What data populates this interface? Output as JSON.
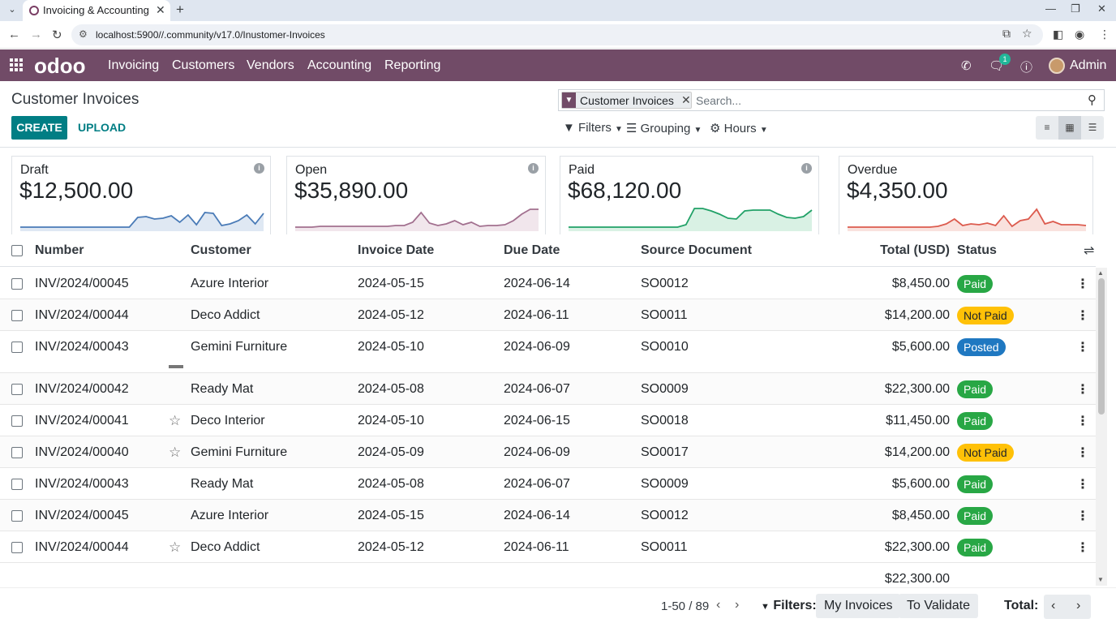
{
  "browser": {
    "tab_title": "Invoicing & Accounting",
    "url": "localhost:5900//.community/v17.0/Inustomer-Invoices"
  },
  "topnav": {
    "logo": "odoo",
    "menu": [
      "Invoicing",
      "Customers",
      "Vendors",
      "Accounting",
      "Reporting"
    ],
    "chat_badge": "1",
    "user": "Admin"
  },
  "control": {
    "title": "Customer Invoices",
    "create": "CREATE",
    "upload": "UPLOAD",
    "facet": "Customer Invoices",
    "search_placeholder": "Search...",
    "filters": "Filters",
    "grouping": "Grouping",
    "hours": "Hours"
  },
  "kpis": [
    {
      "label": "Draft",
      "value": "$12,500.00",
      "color": "#4a7bb7",
      "fill": "#dfe8f3",
      "trend": [
        2,
        2,
        2,
        2,
        2,
        2,
        2,
        2,
        2,
        2,
        2,
        2,
        2,
        2,
        14,
        15,
        12,
        13,
        16,
        8,
        17,
        5,
        20,
        19,
        4,
        6,
        10,
        17,
        6,
        19
      ]
    },
    {
      "label": "Open",
      "value": "$35,890.00",
      "color": "#a2708f",
      "fill": "#f1e6ec",
      "trend": [
        2,
        2,
        2,
        3,
        3,
        3,
        3,
        3,
        3,
        3,
        3,
        3,
        4,
        4,
        8,
        20,
        7,
        4,
        6,
        10,
        5,
        8,
        3,
        4,
        4,
        5,
        10,
        18,
        24,
        24
      ]
    },
    {
      "label": "Paid",
      "value": "$68,120.00",
      "color": "#21a167",
      "fill": "#d9f1e4",
      "trend": [
        2,
        2,
        2,
        2,
        2,
        2,
        2,
        2,
        2,
        2,
        2,
        2,
        2,
        2,
        5,
        25,
        25,
        22,
        18,
        13,
        12,
        22,
        23,
        23,
        23,
        18,
        14,
        13,
        15,
        23
      ]
    },
    {
      "label": "Overdue",
      "value": "$4,350.00",
      "color": "#dc5b4e",
      "fill": "#f9e2de",
      "trend": [
        2,
        2,
        2,
        2,
        2,
        2,
        2,
        2,
        2,
        2,
        2,
        3,
        6,
        12,
        4,
        6,
        5,
        7,
        4,
        16,
        3,
        10,
        12,
        24,
        6,
        9,
        5,
        5,
        5,
        4
      ]
    }
  ],
  "table": {
    "headers": [
      "Number",
      "Customer",
      "Invoice Date",
      "Due Date",
      "Source Document",
      "Total (USD)",
      "Status"
    ],
    "rows": [
      {
        "number": "INV/2024/00045",
        "customer": "Azure Interior",
        "invoice_date": "2024-05-15",
        "due_date": "2024-06-14",
        "source": "SO0012",
        "total": "$8,450.00",
        "status": "Paid",
        "status_kind": "paid",
        "star": false
      },
      {
        "number": "INV/2024/00044",
        "customer": "Deco Addict",
        "invoice_date": "2024-05-12",
        "due_date": "2024-06-11",
        "source": "SO0011",
        "total": "$14,200.00",
        "status": "Not Paid",
        "status_kind": "notpaid",
        "star": false
      },
      {
        "number": "INV/2024/00043",
        "customer": "Gemini Furniture",
        "invoice_date": "2024-05-10",
        "due_date": "2024-06-09",
        "source": "SO0010",
        "total": "$5,600.00",
        "status": "Posted",
        "status_kind": "posted",
        "star": false
      },
      {
        "number": "INV/2024/00042",
        "customer": "Ready Mat",
        "invoice_date": "2024-05-08",
        "due_date": "2024-06-07",
        "source": "SO0009",
        "total": "$22,300.00",
        "status": "Paid",
        "status_kind": "paid",
        "star": false
      },
      {
        "number": "INV/2024/00041",
        "customer": "Deco Interior",
        "invoice_date": "2024-05-10",
        "due_date": "2024-06-15",
        "source": "SO0018",
        "total": "$11,450.00",
        "status": "Paid",
        "status_kind": "paid",
        "star": true
      },
      {
        "number": "INV/2024/00040",
        "customer": "Gemini Furniture",
        "invoice_date": "2024-05-09",
        "due_date": "2024-06-09",
        "source": "SO0017",
        "total": "$14,200.00",
        "status": "Not Paid",
        "status_kind": "notpaid",
        "star": true
      },
      {
        "number": "INV/2024/00043",
        "customer": "Ready Mat",
        "invoice_date": "2024-05-08",
        "due_date": "2024-06-07",
        "source": "SO0009",
        "total": "$5,600.00",
        "status": "Paid",
        "status_kind": "paid",
        "star": false
      },
      {
        "number": "INV/2024/00045",
        "customer": "Azure Interior",
        "invoice_date": "2024-05-15",
        "due_date": "2024-06-14",
        "source": "SO0012",
        "total": "$8,450.00",
        "status": "Paid",
        "status_kind": "paid",
        "star": false
      },
      {
        "number": "INV/2024/00044",
        "customer": "Deco Addict",
        "invoice_date": "2024-05-12",
        "due_date": "2024-06-11",
        "source": "SO0011",
        "total": "$22,300.00",
        "status": "Paid",
        "status_kind": "paid",
        "star": true
      }
    ],
    "grand_total": "$22,300.00"
  },
  "footer": {
    "pager": "1-50 / 89",
    "filters_label": "Filters:",
    "chips": [
      "My Invoices",
      "To Validate"
    ],
    "total_label": "Total:"
  },
  "colors": {
    "brand": "#714b67",
    "primary": "#017e84",
    "paid": "#28a745",
    "not_paid": "#ffc107",
    "posted": "#1f78c1"
  }
}
